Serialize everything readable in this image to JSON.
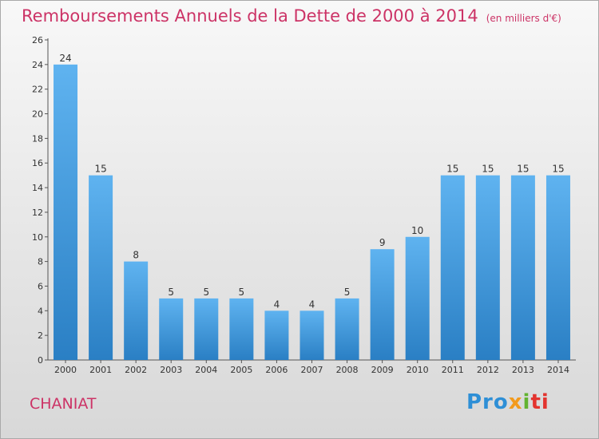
{
  "title": "Remboursements Annuels de la Dette de 2000 à 2014",
  "unit": "(en milliers d'€)",
  "commune": "CHANIAT",
  "logo": {
    "parts": [
      "Pro",
      "x",
      "i",
      "ti"
    ]
  },
  "colors": {
    "title": "#cc3366",
    "bar_top": "#5fb3f0",
    "bar_bottom": "#2a7fc4"
  },
  "chart_data": {
    "type": "bar",
    "title": "Remboursements Annuels de la Dette de 2000 à 2014",
    "categories": [
      "2000",
      "2001",
      "2002",
      "2003",
      "2004",
      "2005",
      "2006",
      "2007",
      "2008",
      "2009",
      "2010",
      "2011",
      "2012",
      "2013",
      "2014"
    ],
    "values": [
      24,
      15,
      8,
      5,
      5,
      5,
      4,
      4,
      5,
      9,
      10,
      15,
      15,
      15,
      15
    ],
    "ylim": [
      0,
      26
    ],
    "yticks": [
      0,
      2,
      4,
      6,
      8,
      10,
      12,
      14,
      16,
      18,
      20,
      22,
      24,
      26
    ],
    "grid": false,
    "data_labels": true
  }
}
